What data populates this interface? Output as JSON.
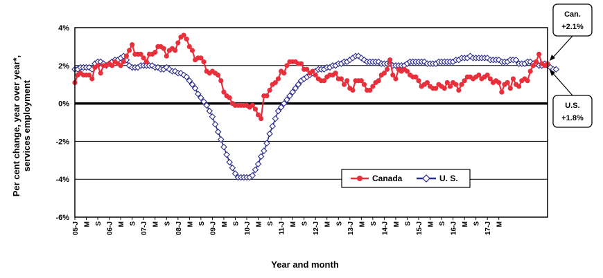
{
  "chart_data": {
    "type": "line",
    "title": "",
    "xlabel": "Year and month",
    "ylabel_lines": [
      "Per cent change, year over year*,",
      "services employment"
    ],
    "ylim": [
      -6,
      4
    ],
    "yticks": [
      -6,
      -4,
      -2,
      0,
      2,
      4
    ],
    "ytick_labels": [
      "-6%",
      "-4%",
      "-2%",
      "0%",
      "2%",
      "4%"
    ],
    "grid": true,
    "legend_position": "lower-right",
    "x_start": "2005-01",
    "x_end": "2017-05",
    "x_tick_labels": [
      "05-J",
      "M",
      "S",
      "06-J",
      "M",
      "S",
      "07-J",
      "M",
      "S",
      "08-J",
      "M",
      "S",
      "09-J",
      "M",
      "S",
      "10-J",
      "M",
      "S",
      "11-J",
      "M",
      "S",
      "12-J",
      "M",
      "S",
      "13-J",
      "M",
      "S",
      "14-J",
      "M",
      "S",
      "15-J",
      "M",
      "S",
      "16-J",
      "M",
      "S",
      "17-J",
      "M"
    ],
    "series": [
      {
        "name": "Canada",
        "color": "#e8303c",
        "marker": "circle",
        "values": [
          1.1,
          1.5,
          1.6,
          1.5,
          1.5,
          1.5,
          1.3,
          1.9,
          2.0,
          1.6,
          2.0,
          2.0,
          2.1,
          2.0,
          2.2,
          2.1,
          2.0,
          2.2,
          2.5,
          2.8,
          3.1,
          2.6,
          2.6,
          2.6,
          2.4,
          2.2,
          2.6,
          2.6,
          2.7,
          3.0,
          3.0,
          2.9,
          2.5,
          2.8,
          2.9,
          2.8,
          3.2,
          3.5,
          3.6,
          3.4,
          3.0,
          2.8,
          2.3,
          2.4,
          2.4,
          2.2,
          1.7,
          1.6,
          1.7,
          1.6,
          1.5,
          1.2,
          0.6,
          0.4,
          0.3,
          0.0,
          -0.1,
          -0.1,
          -0.1,
          -0.1,
          -0.1,
          -0.2,
          -0.1,
          -0.3,
          -0.6,
          -0.8,
          0.4,
          0.4,
          0.7,
          1.0,
          1.1,
          1.3,
          1.7,
          1.6,
          2.0,
          2.2,
          2.2,
          2.2,
          2.1,
          2.1,
          1.8,
          1.8,
          1.6,
          1.7,
          1.5,
          1.3,
          1.2,
          1.2,
          1.4,
          1.5,
          1.5,
          1.6,
          1.3,
          1.3,
          1.0,
          1.2,
          0.8,
          0.7,
          1.2,
          1.2,
          1.2,
          1.0,
          0.7,
          0.7,
          0.9,
          1.1,
          1.2,
          1.5,
          1.6,
          1.8,
          2.3,
          1.5,
          1.3,
          1.8,
          1.7,
          1.8,
          1.7,
          1.5,
          1.4,
          1.4,
          1.2,
          0.9,
          1.0,
          1.1,
          0.9,
          0.8,
          0.8,
          1.0,
          0.9,
          0.8,
          1.1,
          0.9,
          1.1,
          1.0,
          0.7,
          1.0,
          1.2,
          1.4,
          1.4,
          1.3,
          1.4,
          1.5,
          1.3,
          1.4,
          1.5,
          1.3,
          1.1,
          1.2,
          1.1,
          0.6,
          1.0,
          1.1,
          0.8,
          1.3,
          1.0,
          0.9,
          1.2,
          1.3,
          1.2,
          1.7,
          2.0,
          2.2,
          2.6,
          2.1,
          2.0,
          2.1
        ]
      },
      {
        "name": "U. S.",
        "color": "#2c2c8c",
        "marker": "diamond",
        "values": [
          1.8,
          1.8,
          1.9,
          1.9,
          1.9,
          1.9,
          1.8,
          2.1,
          2.2,
          2.2,
          2.1,
          2.0,
          2.1,
          2.2,
          2.3,
          2.3,
          2.4,
          2.5,
          2.3,
          2.0,
          1.9,
          1.9,
          1.9,
          2.0,
          2.0,
          2.0,
          2.0,
          2.0,
          1.9,
          1.9,
          1.8,
          1.8,
          1.9,
          1.8,
          1.7,
          1.7,
          1.6,
          1.6,
          1.5,
          1.4,
          1.2,
          1.0,
          0.8,
          0.5,
          0.3,
          0.1,
          -0.1,
          -0.4,
          -0.7,
          -1.1,
          -1.5,
          -1.9,
          -2.3,
          -2.7,
          -3.1,
          -3.4,
          -3.7,
          -3.9,
          -3.9,
          -3.9,
          -3.9,
          -3.9,
          -3.8,
          -3.5,
          -3.2,
          -2.8,
          -2.5,
          -2.1,
          -1.6,
          -1.2,
          -0.8,
          -0.4,
          -0.2,
          0.0,
          0.2,
          0.4,
          0.6,
          0.8,
          1.0,
          1.2,
          1.3,
          1.4,
          1.5,
          1.6,
          1.7,
          1.8,
          1.8,
          1.8,
          1.9,
          1.9,
          2.0,
          2.0,
          2.1,
          2.1,
          2.2,
          2.2,
          2.3,
          2.4,
          2.5,
          2.5,
          2.4,
          2.3,
          2.2,
          2.2,
          2.2,
          2.2,
          2.2,
          2.1,
          2.1,
          2.1,
          2.1,
          2.0,
          2.0,
          2.0,
          2.0,
          2.0,
          2.1,
          2.2,
          2.2,
          2.2,
          2.2,
          2.2,
          2.2,
          2.1,
          2.1,
          2.1,
          2.1,
          2.2,
          2.2,
          2.2,
          2.2,
          2.2,
          2.2,
          2.3,
          2.3,
          2.4,
          2.4,
          2.4,
          2.5,
          2.4,
          2.4,
          2.4,
          2.4,
          2.4,
          2.4,
          2.3,
          2.3,
          2.3,
          2.3,
          2.2,
          2.2,
          2.2,
          2.3,
          2.3,
          2.3,
          2.1,
          2.1,
          2.1,
          2.2,
          2.2,
          2.1,
          2.1,
          2.0,
          2.0,
          2.1,
          2.0,
          1.9,
          1.8,
          1.8
        ]
      }
    ],
    "annotations": [
      {
        "id": "canada-callout",
        "lines": [
          "Can.",
          "+2.1%"
        ]
      },
      {
        "id": "us-callout",
        "lines": [
          "U.S.",
          "+1.8%"
        ]
      }
    ]
  }
}
